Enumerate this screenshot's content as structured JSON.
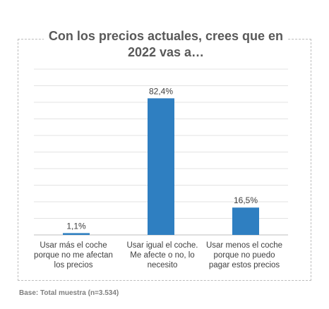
{
  "base_note": "Base: Total muestra (n=3.534)",
  "chart_data": {
    "type": "bar",
    "title": "Con los precios actuales, crees que en 2022 vas a…",
    "categories": [
      "Usar más el coche porque no me afectan los precios",
      "Usar igual el coche. Me afecte o no, lo necesito",
      "Usar menos el coche porque no puedo pagar estos precios"
    ],
    "values": [
      1.1,
      82.4,
      16.5
    ],
    "data_labels": [
      "1,1%",
      "82,4%",
      "16,5%"
    ],
    "ylim": [
      0,
      100
    ],
    "grid": true,
    "bar_color": "#2f7fc1",
    "grid_color": "#e3e3e3"
  }
}
